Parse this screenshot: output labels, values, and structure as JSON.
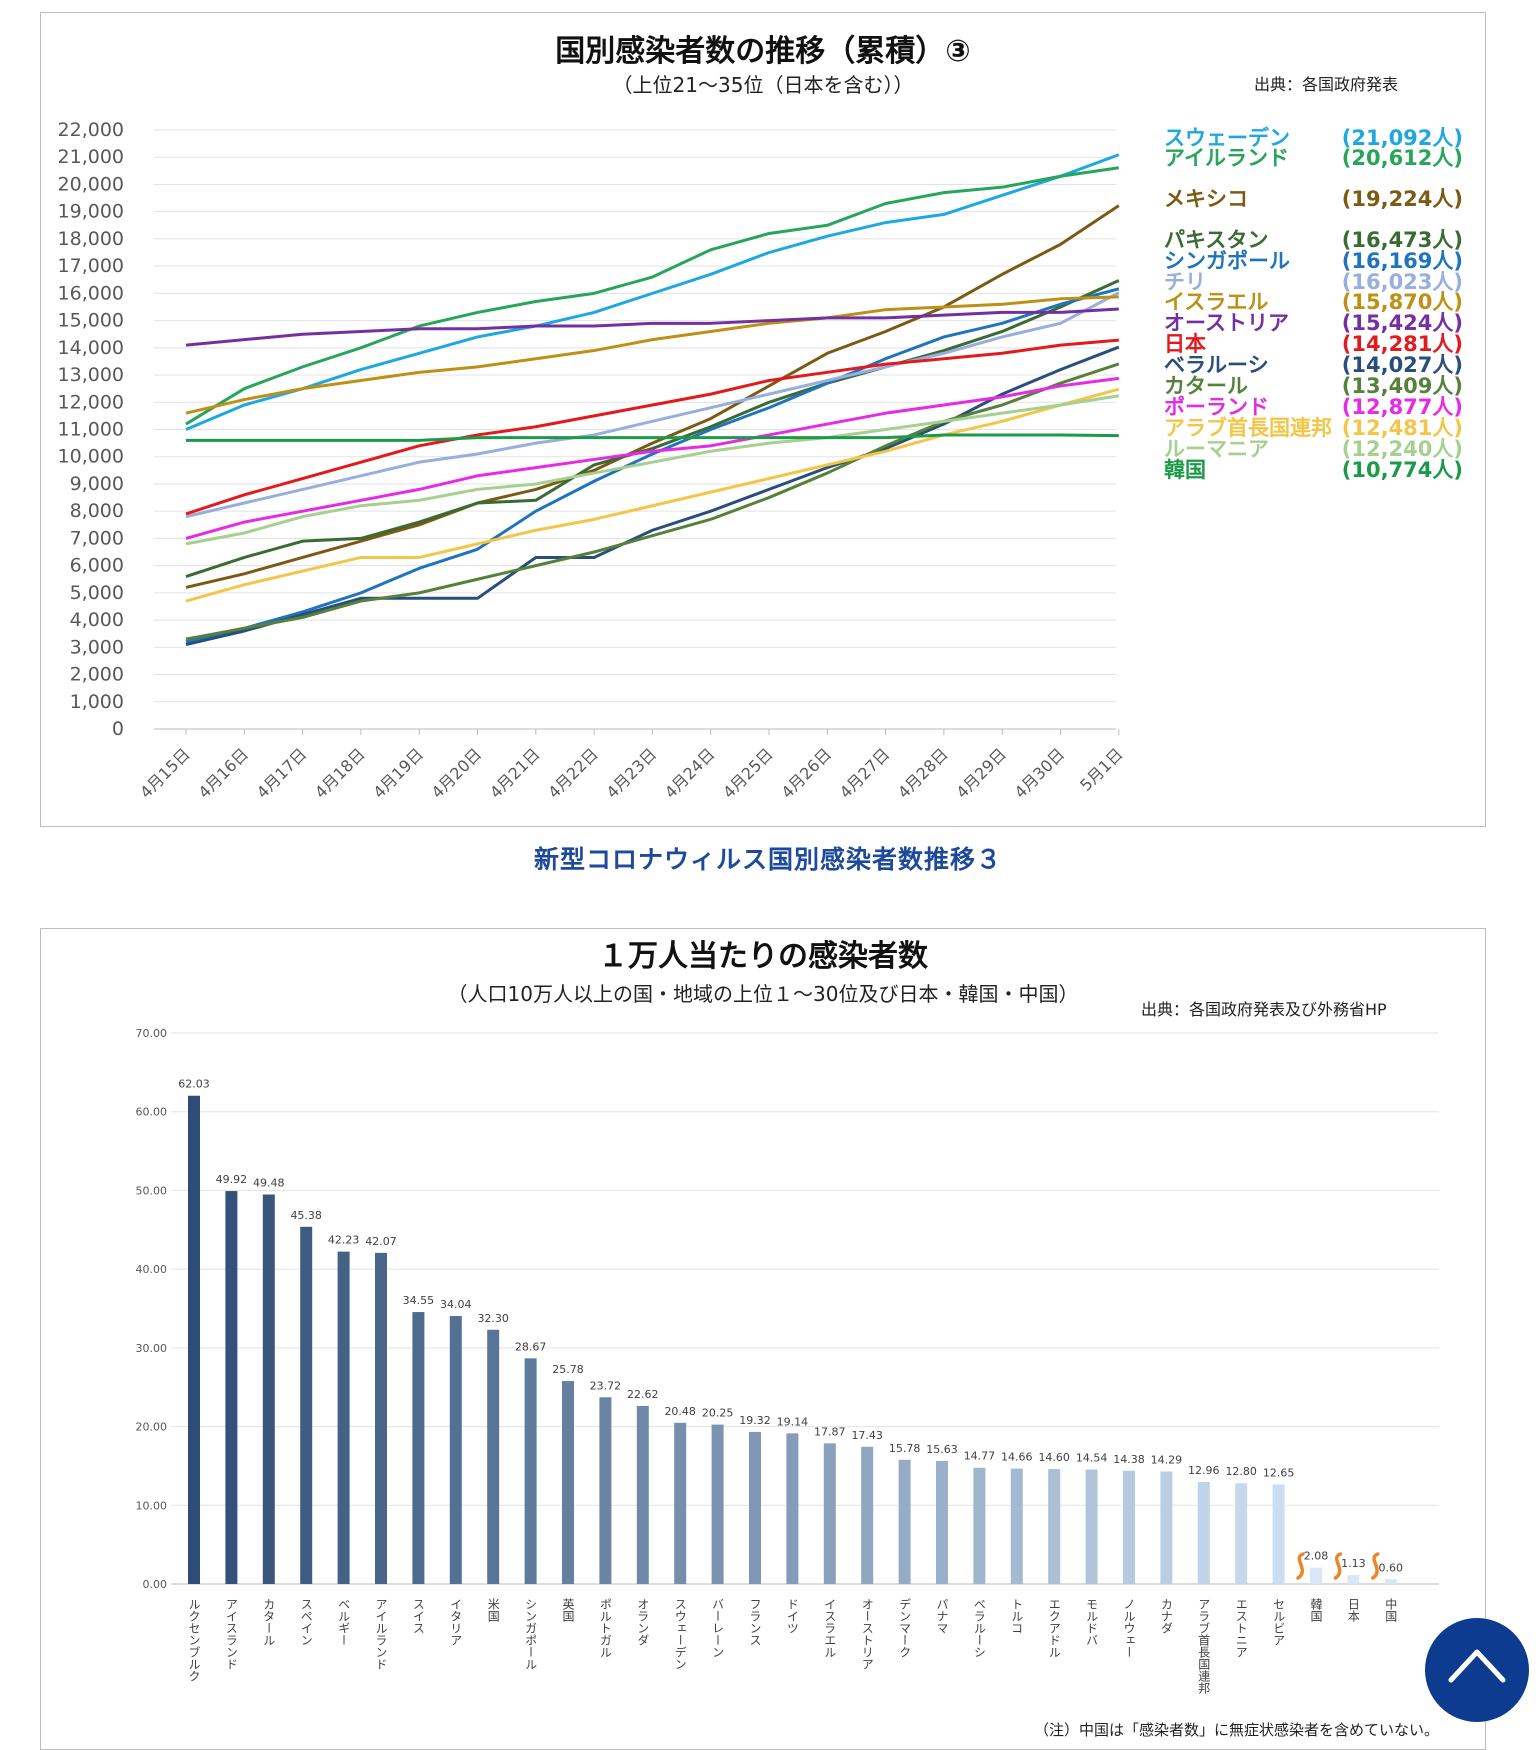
{
  "chart_data": [
    {
      "type": "line",
      "title": "国別感染者数の推移（累積）③",
      "subtitle": "（上位21～35位（日本を含む））",
      "source": "出典：各国政府発表",
      "categories": [
        "4月15日",
        "4月16日",
        "4月17日",
        "4月18日",
        "4月19日",
        "4月20日",
        "4月21日",
        "4月22日",
        "4月23日",
        "4月24日",
        "4月25日",
        "4月26日",
        "4月27日",
        "4月28日",
        "4月29日",
        "4月30日",
        "5月1日"
      ],
      "ylim": [
        0,
        22000
      ],
      "yticks": [
        "0",
        "1,000",
        "2,000",
        "3,000",
        "4,000",
        "5,000",
        "6,000",
        "7,000",
        "8,000",
        "9,000",
        "10,000",
        "11,000",
        "12,000",
        "13,000",
        "14,000",
        "15,000",
        "16,000",
        "17,000",
        "18,000",
        "19,000",
        "20,000",
        "21,000",
        "22,000"
      ],
      "grid": true,
      "legend_position": "right",
      "series": [
        {
          "name": "スウェーデン",
          "label": "(21,092人)",
          "color": "#1fa8e0",
          "values": [
            11000,
            11900,
            12500,
            13200,
            13800,
            14400,
            14800,
            15300,
            16000,
            16700,
            17500,
            18100,
            18600,
            18900,
            19600,
            20300,
            21092
          ]
        },
        {
          "name": "アイルランド",
          "label": "(20,612人)",
          "color": "#27a55b",
          "values": [
            11200,
            12500,
            13300,
            14000,
            14800,
            15300,
            15700,
            16000,
            16600,
            17600,
            18200,
            18500,
            19300,
            19700,
            19900,
            20300,
            20612
          ]
        },
        {
          "name": "メキシコ",
          "label": "(19,224人)",
          "color": "#7d5a13",
          "values": [
            5200,
            5700,
            6300,
            6900,
            7500,
            8300,
            8800,
            9500,
            10500,
            11400,
            12600,
            13800,
            14600,
            15500,
            16700,
            17800,
            19224
          ]
        },
        {
          "name": "パキスタン",
          "label": "(16,473人)",
          "color": "#3a6b32",
          "values": [
            5600,
            6300,
            6900,
            7000,
            7600,
            8300,
            8400,
            9700,
            10300,
            11100,
            12000,
            12700,
            13300,
            13900,
            14600,
            15500,
            16473
          ]
        },
        {
          "name": "シンガポール",
          "label": "(16,169人)",
          "color": "#1f74bd",
          "values": [
            3200,
            3700,
            4300,
            5000,
            5900,
            6600,
            8000,
            9100,
            10100,
            11000,
            11800,
            12700,
            13600,
            14400,
            14900,
            15600,
            16169
          ]
        },
        {
          "name": "チリ",
          "label": "(16,023人)",
          "color": "#98aede",
          "values": [
            7800,
            8300,
            8800,
            9300,
            9800,
            10100,
            10500,
            10800,
            11300,
            11800,
            12300,
            12800,
            13300,
            13800,
            14400,
            14900,
            16023
          ]
        },
        {
          "name": "イスラエル",
          "label": "(15,870人)",
          "color": "#bf9016",
          "values": [
            11600,
            12100,
            12500,
            12800,
            13100,
            13300,
            13600,
            13900,
            14300,
            14600,
            14900,
            15100,
            15400,
            15500,
            15600,
            15800,
            15870
          ]
        },
        {
          "name": "オーストリア",
          "label": "(15,424人)",
          "color": "#7530a0",
          "values": [
            14100,
            14300,
            14500,
            14600,
            14700,
            14700,
            14800,
            14800,
            14900,
            14900,
            15000,
            15100,
            15100,
            15200,
            15300,
            15300,
            15424
          ]
        },
        {
          "name": "日本",
          "label": "(14,281人)",
          "color": "#e31a1c",
          "values": [
            7900,
            8600,
            9200,
            9800,
            10400,
            10800,
            11100,
            11500,
            11900,
            12300,
            12800,
            13100,
            13400,
            13600,
            13800,
            14100,
            14281
          ]
        },
        {
          "name": "ベラルーシ",
          "label": "(14,027人)",
          "color": "#284e7c",
          "values": [
            3100,
            3600,
            4200,
            4800,
            4800,
            4800,
            6300,
            6300,
            7300,
            8000,
            8800,
            9600,
            10300,
            11200,
            12300,
            13200,
            14027
          ]
        },
        {
          "name": "カタール",
          "label": "(13,409人)",
          "color": "#56813a",
          "values": [
            3300,
            3700,
            4100,
            4700,
            5000,
            5500,
            6000,
            6500,
            7100,
            7700,
            8500,
            9400,
            10400,
            11300,
            11900,
            12700,
            13409
          ]
        },
        {
          "name": "ポーランド",
          "label": "(12,877人)",
          "color": "#e62ae6",
          "values": [
            7000,
            7600,
            8000,
            8400,
            8800,
            9300,
            9600,
            9900,
            10200,
            10400,
            10800,
            11200,
            11600,
            11900,
            12200,
            12600,
            12877
          ]
        },
        {
          "name": "アラブ首長国連邦",
          "label": "(12,481人)",
          "color": "#f3c64a",
          "values": [
            4700,
            5300,
            5800,
            6300,
            6300,
            6800,
            7300,
            7700,
            8200,
            8700,
            9200,
            9700,
            10200,
            10800,
            11300,
            11900,
            12481
          ]
        },
        {
          "name": "ルーマニア",
          "label": "(12,240人)",
          "color": "#a5d08f",
          "values": [
            6800,
            7200,
            7800,
            8200,
            8400,
            8800,
            9000,
            9400,
            9800,
            10200,
            10500,
            10700,
            11000,
            11300,
            11600,
            11900,
            12240
          ]
        },
        {
          "name": "韓国",
          "label": "(10,774人)",
          "color": "#1c9a49",
          "values": [
            10600,
            10600,
            10600,
            10600,
            10600,
            10700,
            10700,
            10700,
            10700,
            10700,
            10700,
            10700,
            10700,
            10800,
            10800,
            10800,
            10774
          ]
        }
      ]
    },
    {
      "type": "bar",
      "title": "１万人当たりの感染者数",
      "subtitle": "（人口10万人以上の国・地域の上位１～30位及び日本・韓国・中国）",
      "source": "出典：各国政府発表及び外務省HP",
      "note": "（注）中国は「感染者数」に無症状感染者を含めていない。",
      "ylim": [
        0,
        70
      ],
      "yticks": [
        "0.00",
        "10.00",
        "20.00",
        "30.00",
        "40.00",
        "50.00",
        "60.00",
        "70.00"
      ],
      "grid": true,
      "categories": [
        "ルクセンブルク",
        "アイスランド",
        "カタール",
        "スペイン",
        "ベルギー",
        "アイルランド",
        "スイス",
        "イタリア",
        "米国",
        "シンガポール",
        "英国",
        "ポルトガル",
        "オランダ",
        "スウェーデン",
        "バーレーン",
        "フランス",
        "ドイツ",
        "イスラエル",
        "オーストリア",
        "デンマーク",
        "パナマ",
        "ベラルーシ",
        "トルコ",
        "エクアドル",
        "モルドバ",
        "ノルウェー",
        "カナダ",
        "アラブ首長国連邦",
        "エストニア",
        "セルビア",
        "韓国",
        "日本",
        "中国"
      ],
      "values": [
        62.03,
        49.92,
        49.48,
        45.38,
        42.23,
        42.07,
        34.55,
        34.04,
        32.3,
        28.67,
        25.78,
        23.72,
        22.62,
        20.48,
        20.25,
        19.32,
        19.14,
        17.87,
        17.43,
        15.78,
        15.63,
        14.77,
        14.66,
        14.6,
        14.54,
        14.38,
        14.29,
        12.96,
        12.8,
        12.65,
        2.08,
        1.13,
        0.6
      ],
      "data_labels": [
        "62.03",
        "49.92",
        "49.48",
        "45.38",
        "42.23",
        "42.07",
        "34.55",
        "34.04",
        "32.30",
        "28.67",
        "25.78",
        "23.72",
        "22.62",
        "20.48",
        "20.25",
        "19.32",
        "19.14",
        "17.87",
        "17.43",
        "15.78",
        "15.63",
        "14.77",
        "14.66",
        "14.60",
        "14.54",
        "14.38",
        "14.29",
        "12.96",
        "12.80",
        "12.65",
        "2.08",
        "1.13",
        "0.60"
      ],
      "break_marker_color": "#e8882a"
    }
  ],
  "caption": "新型コロナウィルス国別感染者数推移３",
  "scroll_top_icon": "chevron-up-icon"
}
